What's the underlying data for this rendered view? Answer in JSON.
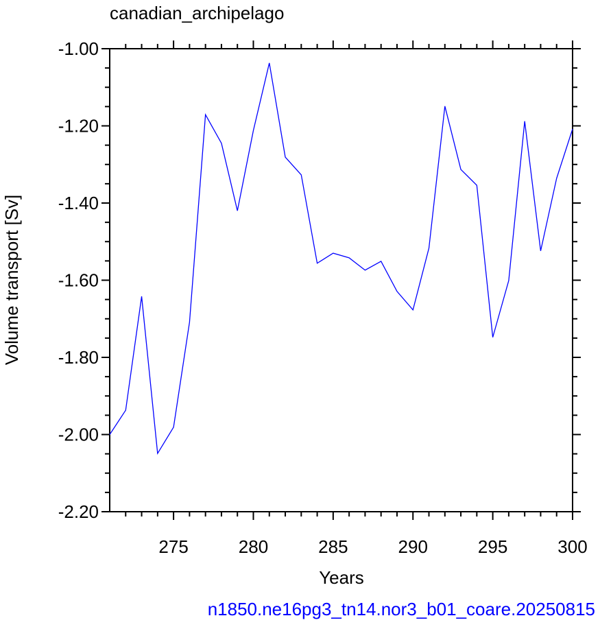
{
  "chart_data": {
    "type": "line",
    "title": "canadian_archipelago",
    "xlabel": "Years",
    "ylabel": "Volume transport [Sv]",
    "subtitle": "n1850.ne16pg3_tn14.nor3_b01_coare.20250815",
    "x": [
      271,
      272,
      273,
      274,
      275,
      276,
      277,
      278,
      279,
      280,
      281,
      282,
      283,
      284,
      285,
      286,
      287,
      288,
      289,
      290,
      291,
      292,
      293,
      294,
      295,
      296,
      297,
      298,
      299,
      300
    ],
    "series": [
      {
        "color": "#0000ff",
        "values": [
          -2.0,
          -1.937,
          -1.642,
          -2.049,
          -1.981,
          -1.709,
          -1.171,
          -1.245,
          -1.42,
          -1.212,
          -1.037,
          -1.281,
          -1.327,
          -1.556,
          -1.53,
          -1.542,
          -1.574,
          -1.551,
          -1.629,
          -1.677,
          -1.517,
          -1.149,
          -1.313,
          -1.354,
          -1.748,
          -1.601,
          -1.188,
          -1.524,
          -1.336,
          -1.208
        ]
      }
    ],
    "xlim": [
      271,
      300
    ],
    "ylim": [
      -2.2,
      -1.0
    ],
    "xticks": [
      275,
      280,
      285,
      290,
      295,
      300
    ],
    "yticks": [
      {
        "value": -2.2,
        "label": "-2.20"
      },
      {
        "value": -2.0,
        "label": "-2.00"
      },
      {
        "value": -1.8,
        "label": "-1.80"
      },
      {
        "value": -1.6,
        "label": "-1.60"
      },
      {
        "value": -1.4,
        "label": "-1.40"
      },
      {
        "value": -1.2,
        "label": "-1.20"
      },
      {
        "value": -1.0,
        "label": "-1.00"
      }
    ],
    "x_minor_ticks": [
      272,
      273,
      274,
      276,
      277,
      278,
      279,
      281,
      282,
      283,
      284,
      286,
      287,
      288,
      289,
      291,
      292,
      293,
      294,
      296,
      297,
      298,
      299
    ],
    "y_minor_ticks": [
      -2.15,
      -2.1,
      -2.05,
      -1.95,
      -1.9,
      -1.85,
      -1.75,
      -1.7,
      -1.65,
      -1.55,
      -1.5,
      -1.45,
      -1.35,
      -1.3,
      -1.25,
      -1.15,
      -1.1,
      -1.05
    ]
  }
}
